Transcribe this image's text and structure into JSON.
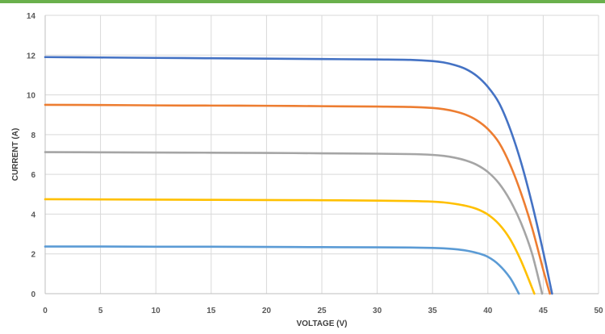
{
  "chart_data": {
    "type": "line",
    "title": "",
    "xlabel": "VOLTAGE (V)",
    "ylabel": "CURRENT (A)",
    "xlim": [
      0,
      50
    ],
    "ylim": [
      0,
      14
    ],
    "xticks": [
      0,
      5,
      10,
      15,
      20,
      25,
      30,
      35,
      40,
      45,
      50
    ],
    "yticks": [
      0,
      2,
      4,
      6,
      8,
      10,
      12,
      14
    ],
    "grid": true,
    "legend": "none",
    "series": [
      {
        "color": "#4472c4",
        "x": [
          0,
          5,
          10,
          15,
          20,
          25,
          30,
          33,
          35,
          36,
          37,
          38,
          39,
          40,
          41,
          42,
          43,
          44,
          45,
          45.8
        ],
        "y": [
          11.9,
          11.88,
          11.86,
          11.84,
          11.82,
          11.8,
          11.78,
          11.76,
          11.7,
          11.63,
          11.5,
          11.3,
          10.95,
          10.4,
          9.6,
          8.3,
          6.6,
          4.5,
          2.1,
          0
        ]
      },
      {
        "color": "#ed7d31",
        "x": [
          0,
          5,
          10,
          15,
          20,
          25,
          30,
          33,
          35,
          36,
          37,
          38,
          39,
          40,
          41,
          42,
          43,
          44,
          45,
          45.6
        ],
        "y": [
          9.5,
          9.49,
          9.47,
          9.46,
          9.45,
          9.43,
          9.41,
          9.39,
          9.34,
          9.28,
          9.17,
          9.0,
          8.72,
          8.28,
          7.6,
          6.5,
          5.05,
          3.3,
          1.2,
          0
        ]
      },
      {
        "color": "#a5a5a5",
        "x": [
          0,
          5,
          10,
          15,
          20,
          25,
          30,
          33,
          35,
          36,
          37,
          38,
          39,
          40,
          41,
          42,
          43,
          44,
          44.9
        ],
        "y": [
          7.12,
          7.11,
          7.1,
          7.09,
          7.08,
          7.06,
          7.04,
          7.02,
          6.98,
          6.93,
          6.84,
          6.7,
          6.48,
          6.12,
          5.55,
          4.7,
          3.55,
          2.0,
          0
        ]
      },
      {
        "color": "#ffc000",
        "x": [
          0,
          5,
          10,
          15,
          20,
          25,
          30,
          33,
          35,
          36,
          37,
          38,
          39,
          40,
          41,
          42,
          43,
          44.2
        ],
        "y": [
          4.75,
          4.74,
          4.73,
          4.72,
          4.71,
          4.7,
          4.68,
          4.66,
          4.63,
          4.59,
          4.52,
          4.42,
          4.26,
          3.98,
          3.5,
          2.75,
          1.65,
          0
        ]
      },
      {
        "color": "#5b9bd5",
        "x": [
          0,
          5,
          10,
          15,
          20,
          25,
          30,
          33,
          35,
          36,
          37,
          38,
          39,
          40,
          41,
          42,
          42.8
        ],
        "y": [
          2.37,
          2.37,
          2.36,
          2.36,
          2.35,
          2.34,
          2.33,
          2.32,
          2.3,
          2.28,
          2.24,
          2.17,
          2.05,
          1.85,
          1.45,
          0.8,
          0
        ]
      }
    ]
  }
}
